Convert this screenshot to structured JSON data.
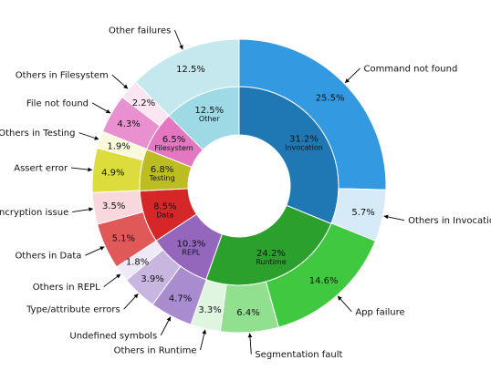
{
  "chart_data": {
    "type": "pie",
    "title": "",
    "inner": [
      {
        "label": "Invocation",
        "value": 31.2,
        "color": "#1f77b4"
      },
      {
        "label": "Runtime",
        "value": 24.2,
        "color": "#2ca02c"
      },
      {
        "label": "REPL",
        "value": 10.3,
        "color": "#9467bd"
      },
      {
        "label": "Data",
        "value": 8.5,
        "color": "#d62728"
      },
      {
        "label": "Testing",
        "value": 6.8,
        "color": "#bcbd22"
      },
      {
        "label": "Filesystem",
        "value": 6.5,
        "color": "#e377c2"
      },
      {
        "label": "Other",
        "value": 12.5,
        "color": "#9edae5"
      }
    ],
    "outer": [
      {
        "label": "Command not found",
        "value": 25.5,
        "color": "#3399e0"
      },
      {
        "label": "Others in Invocation",
        "value": 5.7,
        "color": "#d6eaf8"
      },
      {
        "label": "App failure",
        "value": 14.6,
        "color": "#40c840"
      },
      {
        "label": "Segmentation fault",
        "value": 6.4,
        "color": "#90e090"
      },
      {
        "label": "Others in Runtime",
        "value": 3.3,
        "color": "#e0f5e0"
      },
      {
        "label": "Undefined symbols",
        "value": 4.7,
        "color": "#a98bd0"
      },
      {
        "label": "Type/attribute errors",
        "value": 3.9,
        "color": "#c8b6e0"
      },
      {
        "label": "Others in REPL",
        "value": 1.8,
        "color": "#efe8f7"
      },
      {
        "label": "Others in Data",
        "value": 5.1,
        "color": "#e05858"
      },
      {
        "label": "Encryption issue",
        "value": 3.5,
        "color": "#f8d8dc"
      },
      {
        "label": "Assert error",
        "value": 4.9,
        "color": "#dcdc3c"
      },
      {
        "label": "Others in Testing",
        "value": 1.9,
        "color": "#f9f9dc"
      },
      {
        "label": "File not found",
        "value": 4.3,
        "color": "#e890d0"
      },
      {
        "label": "Others in Filesystem",
        "value": 2.2,
        "color": "#fbe5f3"
      },
      {
        "label": "Other failures",
        "value": 12.5,
        "color": "#c5e8ef"
      }
    ]
  }
}
